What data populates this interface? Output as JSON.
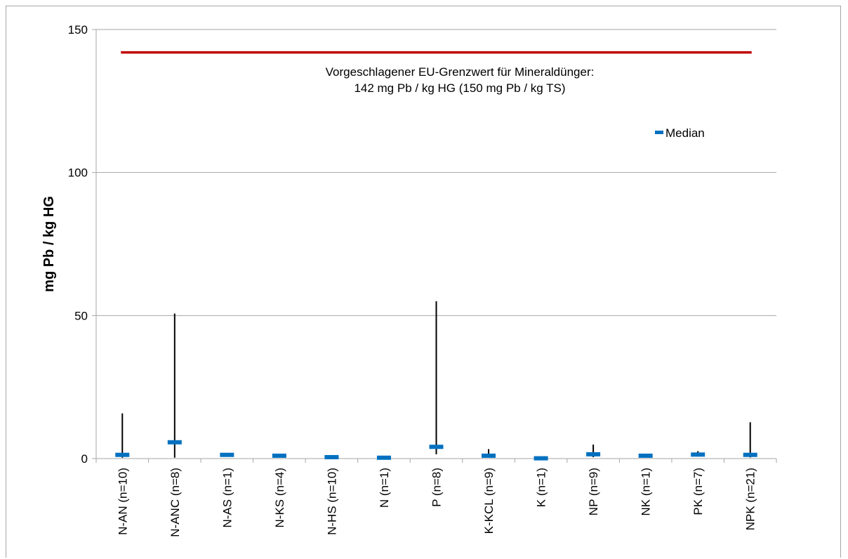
{
  "colors": {
    "limit_line": "#c00000",
    "median_marker": "#0070c0",
    "range_line": "#000000",
    "gridline": "#a6a6a6"
  },
  "chart_data": {
    "type": "scatter",
    "ylabel": "mg Pb / kg HG",
    "xlabel": "",
    "ylim": [
      0,
      150
    ],
    "yticks": [
      0,
      50,
      100,
      150
    ],
    "grid": true,
    "categories": [
      "N-AN (n=10)",
      "N-ANC (n=8)",
      "N-AS (n=1)",
      "N-KS (n=4)",
      "N-HS (n=10)",
      "N (n=1)",
      "P (n=8)",
      "K-KCL (n=9)",
      "K (n=1)",
      "NP (n=9)",
      "NK (n=1)",
      "PK (n=7)",
      "NPK (n=21)"
    ],
    "series": [
      {
        "name": "Median",
        "values": [
          1.3,
          5.7,
          1.3,
          1.0,
          0.5,
          0.3,
          4.1,
          1.0,
          0.1,
          1.5,
          1.0,
          1.4,
          1.3
        ]
      }
    ],
    "range_min": [
      0.3,
      0.3,
      1.3,
      0.7,
      0.1,
      0.3,
      1.5,
      0.4,
      0.1,
      0.5,
      0.6,
      0.7,
      0.4
    ],
    "range_max": [
      15.8,
      50.7,
      1.3,
      1.2,
      1.1,
      0.3,
      55.0,
      3.3,
      0.1,
      4.9,
      1.0,
      2.6,
      12.7
    ],
    "reference_line": {
      "value": 142,
      "label_line1": "Vorgeschlagener EU-Grenzwert für Mineraldünger:",
      "label_line2": "142 mg Pb / kg HG (150 mg Pb / kg TS)"
    },
    "legend": {
      "position": "top-right",
      "entries": [
        "Median"
      ]
    }
  }
}
